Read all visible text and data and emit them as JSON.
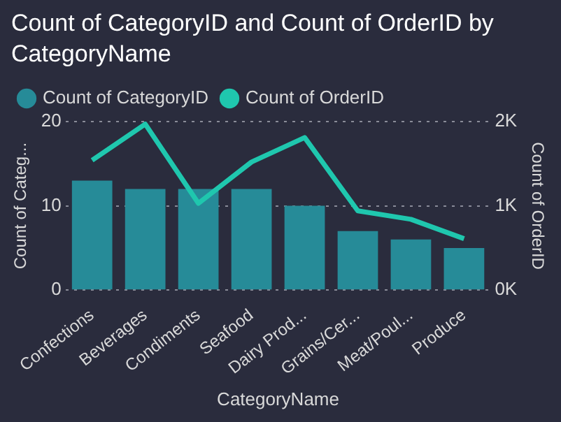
{
  "chart_data": {
    "type": "bar",
    "title": "Count of CategoryID and Count of OrderID by CategoryName",
    "categories": [
      "Confections",
      "Beverages",
      "Condiments",
      "Seafood",
      "Dairy Prod...",
      "Grains/Cer...",
      "Meat/Poul...",
      "Produce"
    ],
    "series": [
      {
        "name": "Count of CategoryID",
        "color": "#268b98",
        "values": [
          13,
          12,
          12,
          12,
          10,
          7,
          6,
          5
        ]
      },
      {
        "name": "Count of OrderID",
        "type": "line",
        "axis": "y2",
        "color": "#1fc7ae",
        "values": [
          1540,
          1970,
          1030,
          1520,
          1810,
          940,
          840,
          610
        ]
      }
    ],
    "xlabel": "CategoryName",
    "ylabel": "Count of Categ...",
    "y2label": "Count of OrderID",
    "ylim": [
      0,
      20
    ],
    "yticks": [
      0,
      10,
      20
    ],
    "y2lim": [
      0,
      2000
    ],
    "y2ticks": [
      {
        "value": 0,
        "label": "0K"
      },
      {
        "value": 1000,
        "label": "1K"
      },
      {
        "value": 2000,
        "label": "2K"
      }
    ],
    "grid": "y",
    "legend": "top left",
    "marker": "none"
  }
}
